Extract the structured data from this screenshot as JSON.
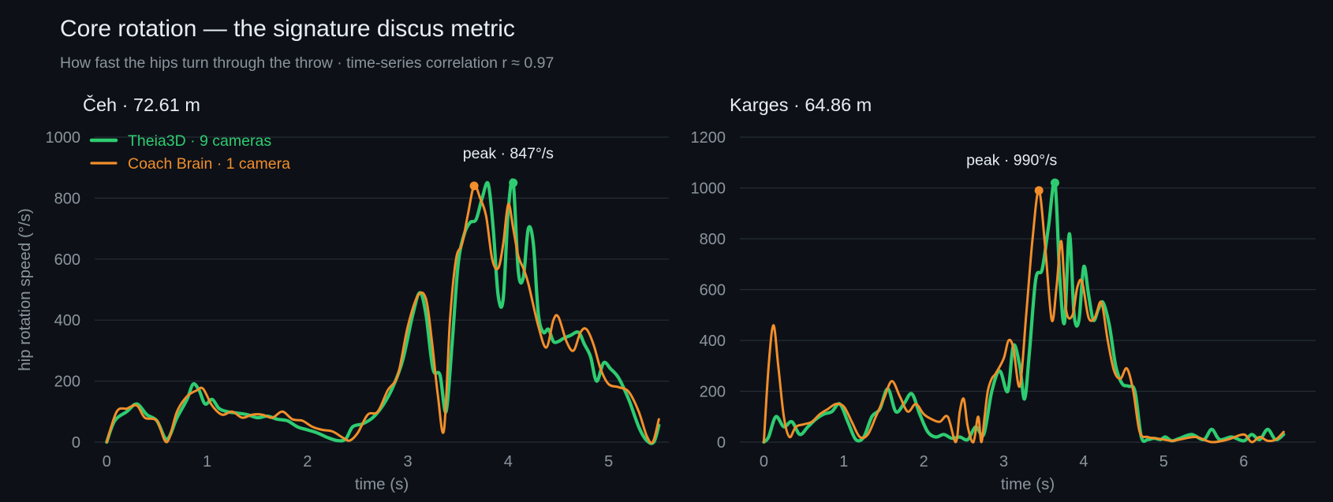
{
  "title": "Core rotation — the signature discus metric",
  "subtitle": "How fast the hips turn through the throw · time-series correlation r ≈ 0.97",
  "colors": {
    "background": "#0d1117",
    "theia": "#2ecc71",
    "coach": "#f28e2b",
    "grid": "#262c36",
    "tick": "#8b949e",
    "text": "#e6edf3"
  },
  "legend": {
    "placement": "top-left",
    "entries": [
      "Theia3D · 9 cameras",
      "Coach Brain · 1 camera"
    ]
  },
  "chart_data": [
    {
      "type": "line",
      "title": "Čeh · 72.61 m",
      "xlabel": "time (s)",
      "ylabel": "hip rotation speed (°/s)",
      "xlim": [
        -0.12,
        5.6
      ],
      "ylim": [
        0,
        1000
      ],
      "xticks": [
        0,
        1,
        2,
        3,
        4,
        5
      ],
      "yticks": [
        0,
        200,
        400,
        600,
        800,
        1000
      ],
      "grid": "horizontal",
      "annotation": "peak · 847°/s",
      "series": [
        {
          "name": "Theia3D · 9 cameras",
          "x": [
            0,
            0.08,
            0.2,
            0.3,
            0.4,
            0.5,
            0.6,
            0.7,
            0.8,
            0.86,
            0.92,
            0.98,
            1.05,
            1.12,
            1.2,
            1.3,
            1.4,
            1.5,
            1.6,
            1.7,
            1.8,
            1.9,
            2.0,
            2.1,
            2.2,
            2.3,
            2.38,
            2.45,
            2.55,
            2.65,
            2.75,
            2.85,
            2.95,
            3.05,
            3.12,
            3.18,
            3.25,
            3.32,
            3.38,
            3.44,
            3.5,
            3.56,
            3.62,
            3.68,
            3.74,
            3.8,
            3.85,
            3.9,
            3.95,
            4.0,
            4.05,
            4.1,
            4.15,
            4.2,
            4.25,
            4.3,
            4.35,
            4.4,
            4.45,
            4.5,
            4.55,
            4.62,
            4.7,
            4.76,
            4.82,
            4.88,
            4.95,
            5.02,
            5.1,
            5.2,
            5.3,
            5.38,
            5.45,
            5.5
          ],
          "values": [
            0,
            70,
            100,
            125,
            90,
            70,
            10,
            80,
            140,
            190,
            170,
            125,
            140,
            110,
            100,
            95,
            90,
            80,
            85,
            75,
            70,
            50,
            40,
            30,
            15,
            5,
            10,
            50,
            60,
            80,
            120,
            180,
            270,
            420,
            490,
            420,
            240,
            220,
            100,
            320,
            580,
            680,
            720,
            730,
            800,
            847,
            700,
            480,
            470,
            760,
            850,
            560,
            540,
            700,
            650,
            420,
            360,
            370,
            330,
            330,
            340,
            350,
            360,
            320,
            280,
            200,
            260,
            240,
            210,
            140,
            50,
            5,
            0,
            55
          ]
        },
        {
          "name": "Coach Brain · 1 camera",
          "x": [
            0,
            0.1,
            0.2,
            0.3,
            0.38,
            0.5,
            0.6,
            0.7,
            0.8,
            0.9,
            0.96,
            1.05,
            1.15,
            1.25,
            1.35,
            1.45,
            1.55,
            1.65,
            1.75,
            1.85,
            1.95,
            2.05,
            2.15,
            2.25,
            2.35,
            2.42,
            2.5,
            2.6,
            2.7,
            2.8,
            2.9,
            3.0,
            3.1,
            3.18,
            3.24,
            3.3,
            3.36,
            3.42,
            3.48,
            3.54,
            3.6,
            3.66,
            3.72,
            3.78,
            3.84,
            3.9,
            3.95,
            4.0,
            4.05,
            4.1,
            4.15,
            4.2,
            4.3,
            4.38,
            4.45,
            4.5,
            4.58,
            4.65,
            4.72,
            4.78,
            4.85,
            4.92,
            5.0,
            5.1,
            5.2,
            5.3,
            5.38,
            5.44,
            5.5
          ],
          "values": [
            0,
            100,
            110,
            120,
            80,
            70,
            0,
            100,
            150,
            170,
            175,
            120,
            90,
            100,
            80,
            90,
            90,
            80,
            100,
            75,
            70,
            50,
            40,
            35,
            15,
            5,
            30,
            90,
            100,
            170,
            220,
            380,
            480,
            470,
            330,
            150,
            40,
            400,
            600,
            650,
            750,
            840,
            800,
            740,
            600,
            570,
            650,
            780,
            700,
            610,
            570,
            520,
            380,
            310,
            400,
            410,
            330,
            300,
            360,
            370,
            320,
            240,
            190,
            180,
            165,
            100,
            20,
            0,
            75
          ]
        }
      ]
    },
    {
      "type": "line",
      "title": "Karges · 64.86 m",
      "xlabel": "time (s)",
      "ylabel": "",
      "xlim": [
        -0.3,
        6.9
      ],
      "ylim": [
        0,
        1200
      ],
      "xticks": [
        0,
        1,
        2,
        3,
        4,
        5,
        6
      ],
      "yticks": [
        0,
        200,
        400,
        600,
        800,
        1000,
        1200
      ],
      "grid": "horizontal",
      "annotation": "peak · 990°/s",
      "series": [
        {
          "name": "Theia3D · 9 cameras",
          "x": [
            0,
            0.06,
            0.15,
            0.25,
            0.35,
            0.45,
            0.55,
            0.65,
            0.75,
            0.85,
            0.95,
            1.05,
            1.15,
            1.25,
            1.35,
            1.45,
            1.55,
            1.65,
            1.75,
            1.85,
            1.95,
            2.05,
            2.15,
            2.25,
            2.35,
            2.45,
            2.55,
            2.65,
            2.75,
            2.85,
            2.95,
            3.05,
            3.12,
            3.2,
            3.26,
            3.32,
            3.4,
            3.48,
            3.56,
            3.64,
            3.7,
            3.76,
            3.82,
            3.88,
            3.94,
            4.0,
            4.06,
            4.12,
            4.18,
            4.24,
            4.32,
            4.4,
            4.48,
            4.56,
            4.64,
            4.72,
            4.8,
            4.88,
            4.96,
            5.02,
            5.1,
            5.2,
            5.35,
            5.5,
            5.6,
            5.7,
            5.85,
            6.0,
            6.1,
            6.2,
            6.3,
            6.4,
            6.5
          ],
          "values": [
            0,
            20,
            100,
            60,
            80,
            30,
            60,
            90,
            110,
            120,
            150,
            80,
            10,
            20,
            100,
            130,
            210,
            120,
            150,
            190,
            110,
            40,
            20,
            30,
            15,
            20,
            10,
            60,
            30,
            200,
            280,
            200,
            380,
            300,
            170,
            350,
            640,
            680,
            850,
            1020,
            650,
            470,
            820,
            500,
            480,
            690,
            580,
            480,
            520,
            550,
            460,
            300,
            230,
            220,
            200,
            20,
            10,
            15,
            10,
            20,
            5,
            15,
            30,
            10,
            50,
            10,
            20,
            5,
            30,
            10,
            50,
            10,
            30
          ]
        },
        {
          "name": "Coach Brain · 1 camera",
          "x": [
            0,
            0.06,
            0.12,
            0.18,
            0.25,
            0.32,
            0.4,
            0.5,
            0.6,
            0.7,
            0.8,
            0.9,
            1.0,
            1.1,
            1.2,
            1.3,
            1.4,
            1.5,
            1.6,
            1.7,
            1.8,
            1.9,
            2.0,
            2.1,
            2.2,
            2.3,
            2.4,
            2.45,
            2.5,
            2.55,
            2.62,
            2.68,
            2.72,
            2.76,
            2.8,
            2.85,
            2.9,
            3.0,
            3.06,
            3.12,
            3.2,
            3.28,
            3.36,
            3.44,
            3.52,
            3.6,
            3.66,
            3.72,
            3.78,
            3.86,
            3.92,
            3.98,
            4.06,
            4.14,
            4.22,
            4.3,
            4.38,
            4.46,
            4.54,
            4.62,
            4.7,
            4.8,
            4.9,
            5.0,
            5.1,
            5.2,
            5.4,
            5.6,
            5.8,
            6.0,
            6.1,
            6.2,
            6.3,
            6.4,
            6.5
          ],
          "values": [
            0,
            300,
            460,
            300,
            100,
            20,
            60,
            70,
            80,
            110,
            130,
            150,
            140,
            80,
            20,
            30,
            100,
            170,
            240,
            180,
            120,
            150,
            110,
            90,
            80,
            100,
            0,
            120,
            170,
            60,
            0,
            100,
            0,
            100,
            200,
            250,
            270,
            330,
            400,
            370,
            220,
            500,
            800,
            990,
            760,
            480,
            610,
            790,
            520,
            500,
            610,
            630,
            490,
            490,
            550,
            400,
            280,
            250,
            290,
            200,
            40,
            20,
            15,
            10,
            5,
            10,
            20,
            0,
            10,
            30,
            0,
            20,
            5,
            10,
            40
          ]
        }
      ]
    }
  ]
}
